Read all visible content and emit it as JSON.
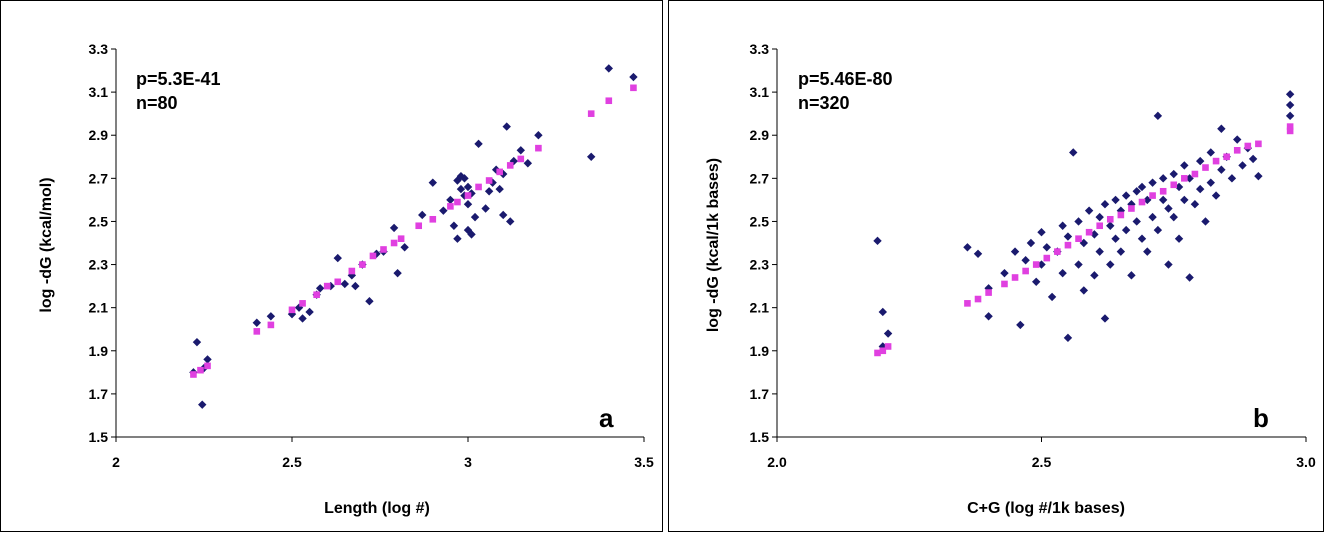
{
  "colors": {
    "observed": "#1a1a6e",
    "fitted": "#e040e0",
    "axis": "#000000"
  },
  "chart_data": [
    {
      "type": "scatter",
      "panel_letter": "a",
      "annotation": {
        "p": "p=5.3E-41",
        "n": "n=80"
      },
      "xlabel": "Length (log #)",
      "ylabel": "log -dG (kcal/mol)",
      "xlim": [
        2,
        3.5
      ],
      "ylim": [
        1.5,
        3.3
      ],
      "x_ticks": [
        "2",
        "2.5",
        "3",
        "3.5"
      ],
      "y_ticks": [
        "1.5",
        "1.7",
        "1.9",
        "2.1",
        "2.3",
        "2.5",
        "2.7",
        "2.9",
        "3.1",
        "3.3"
      ],
      "series": [
        {
          "marker": "diamond",
          "points": [
            [
              2.22,
              1.8
            ],
            [
              2.23,
              1.94
            ],
            [
              2.245,
              1.65
            ],
            [
              2.25,
              1.82
            ],
            [
              2.26,
              1.86
            ],
            [
              2.4,
              2.03
            ],
            [
              2.44,
              2.06
            ],
            [
              2.5,
              2.07
            ],
            [
              2.52,
              2.1
            ],
            [
              2.53,
              2.05
            ],
            [
              2.55,
              2.08
            ],
            [
              2.57,
              2.16
            ],
            [
              2.58,
              2.19
            ],
            [
              2.61,
              2.2
            ],
            [
              2.63,
              2.33
            ],
            [
              2.65,
              2.21
            ],
            [
              2.67,
              2.25
            ],
            [
              2.68,
              2.2
            ],
            [
              2.7,
              2.3
            ],
            [
              2.72,
              2.13
            ],
            [
              2.74,
              2.35
            ],
            [
              2.76,
              2.36
            ],
            [
              2.79,
              2.47
            ],
            [
              2.8,
              2.26
            ],
            [
              2.82,
              2.38
            ],
            [
              2.87,
              2.53
            ],
            [
              2.9,
              2.68
            ],
            [
              2.93,
              2.55
            ],
            [
              2.95,
              2.6
            ],
            [
              2.96,
              2.48
            ],
            [
              2.97,
              2.42
            ],
            [
              2.97,
              2.69
            ],
            [
              2.98,
              2.65
            ],
            [
              2.98,
              2.71
            ],
            [
              2.99,
              2.62
            ],
            [
              2.99,
              2.7
            ],
            [
              3.0,
              2.58
            ],
            [
              3.0,
              2.66
            ],
            [
              3.0,
              2.46
            ],
            [
              3.01,
              2.63
            ],
            [
              3.01,
              2.44
            ],
            [
              3.02,
              2.52
            ],
            [
              3.03,
              2.86
            ],
            [
              3.05,
              2.56
            ],
            [
              3.06,
              2.64
            ],
            [
              3.07,
              2.68
            ],
            [
              3.08,
              2.74
            ],
            [
              3.09,
              2.65
            ],
            [
              3.1,
              2.53
            ],
            [
              3.1,
              2.72
            ],
            [
              3.11,
              2.94
            ],
            [
              3.12,
              2.5
            ],
            [
              3.13,
              2.78
            ],
            [
              3.15,
              2.83
            ],
            [
              3.17,
              2.77
            ],
            [
              3.2,
              2.9
            ],
            [
              3.35,
              2.8
            ],
            [
              3.4,
              3.21
            ],
            [
              3.47,
              3.17
            ]
          ]
        },
        {
          "marker": "square",
          "points": [
            [
              2.22,
              1.79
            ],
            [
              2.24,
              1.81
            ],
            [
              2.26,
              1.83
            ],
            [
              2.4,
              1.99
            ],
            [
              2.44,
              2.02
            ],
            [
              2.5,
              2.09
            ],
            [
              2.53,
              2.12
            ],
            [
              2.57,
              2.16
            ],
            [
              2.6,
              2.2
            ],
            [
              2.63,
              2.22
            ],
            [
              2.67,
              2.27
            ],
            [
              2.7,
              2.3
            ],
            [
              2.73,
              2.34
            ],
            [
              2.76,
              2.37
            ],
            [
              2.79,
              2.4
            ],
            [
              2.81,
              2.42
            ],
            [
              2.86,
              2.48
            ],
            [
              2.9,
              2.51
            ],
            [
              2.95,
              2.57
            ],
            [
              2.97,
              2.59
            ],
            [
              3.0,
              2.62
            ],
            [
              3.03,
              2.66
            ],
            [
              3.06,
              2.69
            ],
            [
              3.09,
              2.73
            ],
            [
              3.12,
              2.76
            ],
            [
              3.15,
              2.79
            ],
            [
              3.2,
              2.84
            ],
            [
              3.35,
              3.0
            ],
            [
              3.4,
              3.06
            ],
            [
              3.47,
              3.12
            ]
          ]
        }
      ]
    },
    {
      "type": "scatter",
      "panel_letter": "b",
      "annotation": {
        "p": "p=5.46E-80",
        "n": "n=320"
      },
      "xlabel": "C+G (log #/1k bases)",
      "ylabel": "log -dG (kcal/1k bases)",
      "xlim": [
        2.0,
        3.0
      ],
      "ylim": [
        1.5,
        3.3
      ],
      "x_ticks": [
        "2.0",
        "2.5",
        "3.0"
      ],
      "y_ticks": [
        "1.5",
        "1.7",
        "1.9",
        "2.1",
        "2.3",
        "2.5",
        "2.7",
        "2.9",
        "3.1",
        "3.3"
      ],
      "series": [
        {
          "marker": "diamond",
          "points": [
            [
              2.19,
              2.41
            ],
            [
              2.2,
              2.08
            ],
            [
              2.21,
              1.98
            ],
            [
              2.2,
              1.92
            ],
            [
              2.36,
              2.38
            ],
            [
              2.38,
              2.35
            ],
            [
              2.4,
              2.06
            ],
            [
              2.4,
              2.19
            ],
            [
              2.43,
              2.26
            ],
            [
              2.45,
              2.36
            ],
            [
              2.46,
              2.02
            ],
            [
              2.47,
              2.32
            ],
            [
              2.48,
              2.4
            ],
            [
              2.49,
              2.22
            ],
            [
              2.5,
              2.3
            ],
            [
              2.5,
              2.45
            ],
            [
              2.51,
              2.38
            ],
            [
              2.52,
              2.15
            ],
            [
              2.53,
              2.36
            ],
            [
              2.54,
              2.48
            ],
            [
              2.54,
              2.26
            ],
            [
              2.55,
              2.43
            ],
            [
              2.55,
              1.96
            ],
            [
              2.56,
              2.82
            ],
            [
              2.57,
              2.3
            ],
            [
              2.57,
              2.5
            ],
            [
              2.58,
              2.4
            ],
            [
              2.58,
              2.18
            ],
            [
              2.59,
              2.55
            ],
            [
              2.6,
              2.44
            ],
            [
              2.6,
              2.25
            ],
            [
              2.61,
              2.52
            ],
            [
              2.61,
              2.36
            ],
            [
              2.62,
              2.58
            ],
            [
              2.62,
              2.05
            ],
            [
              2.63,
              2.48
            ],
            [
              2.63,
              2.3
            ],
            [
              2.64,
              2.6
            ],
            [
              2.64,
              2.42
            ],
            [
              2.65,
              2.55
            ],
            [
              2.65,
              2.36
            ],
            [
              2.66,
              2.62
            ],
            [
              2.66,
              2.46
            ],
            [
              2.67,
              2.58
            ],
            [
              2.67,
              2.25
            ],
            [
              2.68,
              2.64
            ],
            [
              2.68,
              2.5
            ],
            [
              2.69,
              2.66
            ],
            [
              2.69,
              2.42
            ],
            [
              2.7,
              2.6
            ],
            [
              2.7,
              2.36
            ],
            [
              2.71,
              2.68
            ],
            [
              2.71,
              2.52
            ],
            [
              2.72,
              2.99
            ],
            [
              2.72,
              2.46
            ],
            [
              2.73,
              2.7
            ],
            [
              2.73,
              2.6
            ],
            [
              2.74,
              2.56
            ],
            [
              2.74,
              2.3
            ],
            [
              2.75,
              2.72
            ],
            [
              2.75,
              2.52
            ],
            [
              2.76,
              2.66
            ],
            [
              2.76,
              2.42
            ],
            [
              2.77,
              2.76
            ],
            [
              2.77,
              2.6
            ],
            [
              2.78,
              2.24
            ],
            [
              2.78,
              2.7
            ],
            [
              2.79,
              2.58
            ],
            [
              2.8,
              2.78
            ],
            [
              2.8,
              2.65
            ],
            [
              2.81,
              2.5
            ],
            [
              2.82,
              2.82
            ],
            [
              2.82,
              2.68
            ],
            [
              2.83,
              2.62
            ],
            [
              2.84,
              2.93
            ],
            [
              2.84,
              2.74
            ],
            [
              2.85,
              2.8
            ],
            [
              2.86,
              2.7
            ],
            [
              2.87,
              2.88
            ],
            [
              2.88,
              2.76
            ],
            [
              2.89,
              2.84
            ],
            [
              2.9,
              2.79
            ],
            [
              2.91,
              2.71
            ],
            [
              2.97,
              3.09
            ],
            [
              2.97,
              3.04
            ],
            [
              2.97,
              2.99
            ]
          ]
        },
        {
          "marker": "square",
          "points": [
            [
              2.19,
              1.89
            ],
            [
              2.2,
              1.9
            ],
            [
              2.21,
              1.92
            ],
            [
              2.36,
              2.12
            ],
            [
              2.38,
              2.14
            ],
            [
              2.4,
              2.17
            ],
            [
              2.43,
              2.21
            ],
            [
              2.45,
              2.24
            ],
            [
              2.47,
              2.27
            ],
            [
              2.49,
              2.3
            ],
            [
              2.51,
              2.33
            ],
            [
              2.53,
              2.36
            ],
            [
              2.55,
              2.39
            ],
            [
              2.57,
              2.42
            ],
            [
              2.59,
              2.45
            ],
            [
              2.61,
              2.48
            ],
            [
              2.63,
              2.51
            ],
            [
              2.65,
              2.53
            ],
            [
              2.67,
              2.56
            ],
            [
              2.69,
              2.59
            ],
            [
              2.71,
              2.62
            ],
            [
              2.73,
              2.64
            ],
            [
              2.75,
              2.67
            ],
            [
              2.77,
              2.7
            ],
            [
              2.79,
              2.72
            ],
            [
              2.81,
              2.75
            ],
            [
              2.83,
              2.78
            ],
            [
              2.85,
              2.8
            ],
            [
              2.87,
              2.83
            ],
            [
              2.89,
              2.85
            ],
            [
              2.91,
              2.86
            ],
            [
              2.97,
              2.92
            ],
            [
              2.97,
              2.94
            ]
          ]
        }
      ]
    }
  ]
}
